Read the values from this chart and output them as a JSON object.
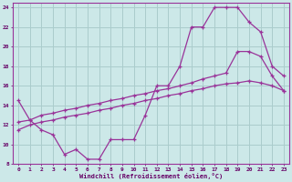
{
  "xlabel": "Windchill (Refroidissement éolien,°C)",
  "background_color": "#cce8e8",
  "grid_color": "#aacccc",
  "line_color": "#993399",
  "xlim": [
    -0.5,
    23.5
  ],
  "ylim": [
    8,
    24.5
  ],
  "xticks": [
    0,
    1,
    2,
    3,
    4,
    5,
    6,
    7,
    8,
    9,
    10,
    11,
    12,
    13,
    14,
    15,
    16,
    17,
    18,
    19,
    20,
    21,
    22,
    23
  ],
  "yticks": [
    8,
    10,
    12,
    14,
    16,
    18,
    20,
    22,
    24
  ],
  "line1_x": [
    0,
    1,
    2,
    3,
    4,
    5,
    6,
    7,
    8,
    9,
    10,
    11,
    12,
    13,
    14,
    15,
    16,
    17,
    18,
    19,
    20,
    21,
    22,
    23
  ],
  "line1_y": [
    14.5,
    12.5,
    11.5,
    11.0,
    9.0,
    9.5,
    8.5,
    8.5,
    10.5,
    10.5,
    10.5,
    13.0,
    16.0,
    16.0,
    18.0,
    22.0,
    22.0,
    24.0,
    24.0,
    24.0,
    22.5,
    21.5,
    18.0,
    17.0
  ],
  "line2_x": [
    0,
    1,
    2,
    3,
    4,
    5,
    6,
    7,
    8,
    9,
    10,
    11,
    12,
    13,
    14,
    15,
    16,
    17,
    18,
    19,
    20,
    21,
    22,
    23
  ],
  "line2_y": [
    12.3,
    12.5,
    13.0,
    13.2,
    13.5,
    13.7,
    14.0,
    14.2,
    14.5,
    14.7,
    15.0,
    15.2,
    15.5,
    15.7,
    16.0,
    16.3,
    16.7,
    17.0,
    17.3,
    19.5,
    19.5,
    19.0,
    17.0,
    15.5
  ],
  "line3_x": [
    0,
    1,
    2,
    3,
    4,
    5,
    6,
    7,
    8,
    9,
    10,
    11,
    12,
    13,
    14,
    15,
    16,
    17,
    18,
    19,
    20,
    21,
    22,
    23
  ],
  "line3_y": [
    11.5,
    12.0,
    12.3,
    12.5,
    12.8,
    13.0,
    13.2,
    13.5,
    13.7,
    14.0,
    14.2,
    14.5,
    14.7,
    15.0,
    15.2,
    15.5,
    15.7,
    16.0,
    16.2,
    16.3,
    16.5,
    16.3,
    16.0,
    15.5
  ]
}
